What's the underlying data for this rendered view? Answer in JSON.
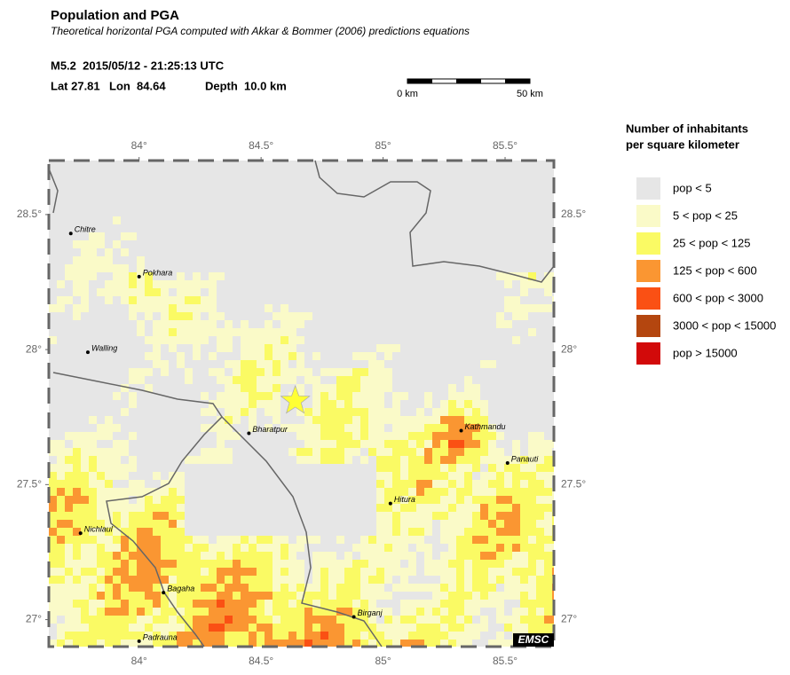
{
  "header": {
    "title": "Population and PGA",
    "subtitle": "Theoretical horizontal PGA computed with Akkar & Bommer (2006) predictions equations",
    "event": "M5.2  2015/05/12 - 21:25:13 UTC",
    "lat": "Lat 27.81",
    "lon": "Lon  84.64",
    "depth": "Depth  10.0 km"
  },
  "scale_bar": {
    "start_label": "0 km",
    "end_label": "50 km"
  },
  "map": {
    "xlim": [
      83.63,
      85.7
    ],
    "ylim": [
      26.9,
      28.7
    ],
    "xticks": [
      {
        "value": 84,
        "label": "84°"
      },
      {
        "value": 84.5,
        "label": "84.5°"
      },
      {
        "value": 85,
        "label": "85°"
      },
      {
        "value": 85.5,
        "label": "85.5°"
      }
    ],
    "yticks": [
      {
        "value": 27,
        "label": "27°"
      },
      {
        "value": 27.5,
        "label": "27.5°"
      },
      {
        "value": 28,
        "label": "28°"
      },
      {
        "value": 28.5,
        "label": "28.5°"
      }
    ],
    "epicenter": {
      "lon": 84.64,
      "lat": 27.81,
      "color": "#ffff33"
    },
    "cities": [
      {
        "name": "Chitre",
        "lon": 83.72,
        "lat": 28.43
      },
      {
        "name": "Pokhara",
        "lon": 84.0,
        "lat": 28.27
      },
      {
        "name": "Walling",
        "lon": 83.79,
        "lat": 27.99
      },
      {
        "name": "Bharatpur",
        "lon": 84.45,
        "lat": 27.69
      },
      {
        "name": "Kathmandu",
        "lon": 85.32,
        "lat": 27.7
      },
      {
        "name": "Panauti",
        "lon": 85.51,
        "lat": 27.58
      },
      {
        "name": "Hitura",
        "lon": 85.03,
        "lat": 27.43
      },
      {
        "name": "Nichlaul",
        "lon": 83.76,
        "lat": 27.32
      },
      {
        "name": "Bagaha",
        "lon": 84.1,
        "lat": 27.1
      },
      {
        "name": "Birganj",
        "lon": 84.88,
        "lat": 27.01
      },
      {
        "name": "Padrauna",
        "lon": 84.0,
        "lat": 26.92
      }
    ],
    "logo": "EMSC"
  },
  "legend": {
    "title": [
      "Number of inhabitants",
      "per square kilometer"
    ],
    "items": [
      {
        "label": "pop < 5",
        "color": "#e6e6e6"
      },
      {
        "label": "5 < pop < 25",
        "color": "#fafac8"
      },
      {
        "label": "25 < pop < 125",
        "color": "#fafa64"
      },
      {
        "label": "125 < pop < 600",
        "color": "#fa9632"
      },
      {
        "label": "600 < pop < 3000",
        "color": "#fa5014"
      },
      {
        "label": "3000 < pop < 15000",
        "color": "#b4460f"
      },
      {
        "label": "pop > 15000",
        "color": "#d20a0a"
      }
    ]
  }
}
